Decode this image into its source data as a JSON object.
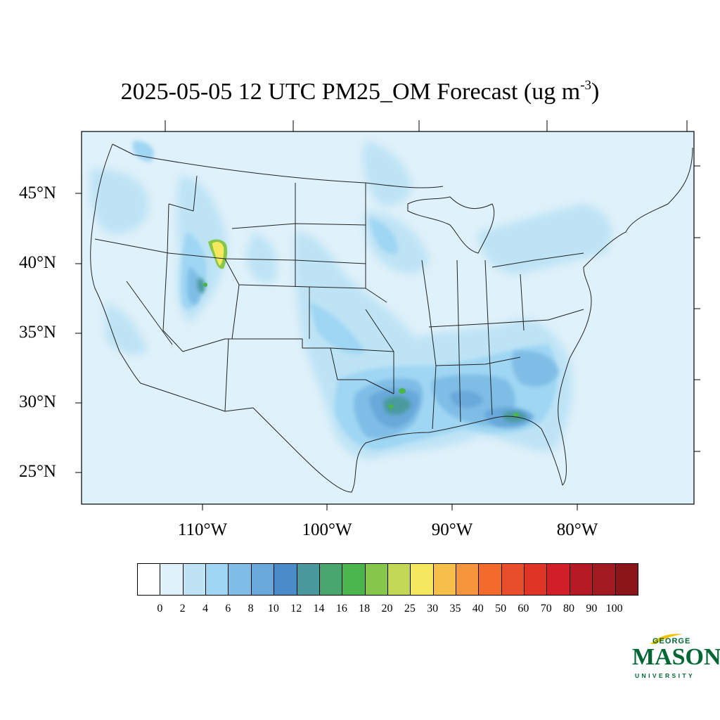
{
  "title": {
    "text": "2025-05-05 12 UTC PM25_OM Forecast (ug m",
    "superscript": "-3",
    "close": ")"
  },
  "map": {
    "lat_labels": [
      "45°N",
      "40°N",
      "35°N",
      "30°N",
      "25°N"
    ],
    "lon_labels": [
      "110°W",
      "100°W",
      "90°W",
      "80°W"
    ],
    "background_color": "#dff1fa"
  },
  "colorbar": {
    "tick_labels": [
      "0",
      "2",
      "4",
      "6",
      "8",
      "10",
      "12",
      "14",
      "16",
      "18",
      "20",
      "25",
      "30",
      "35",
      "40",
      "50",
      "60",
      "70",
      "80",
      "90",
      "100"
    ],
    "colors": [
      "#ffffff",
      "#dff1fa",
      "#bde3f5",
      "#9fd6f3",
      "#7fbde6",
      "#68a8da",
      "#4a8bc9",
      "#4a9a9d",
      "#48a66e",
      "#4ab54a",
      "#86c64b",
      "#c3d955",
      "#f5e85e",
      "#f7bf4a",
      "#f6963c",
      "#f26b2d",
      "#e94e2a",
      "#e03427",
      "#d22029",
      "#b61b25",
      "#a01a20",
      "#8b1619"
    ]
  },
  "logo": {
    "line1": "GEORGE",
    "line2": "MASON",
    "line3": "UNIVERSITY",
    "color": "#006633",
    "accent": "#f2c400"
  }
}
